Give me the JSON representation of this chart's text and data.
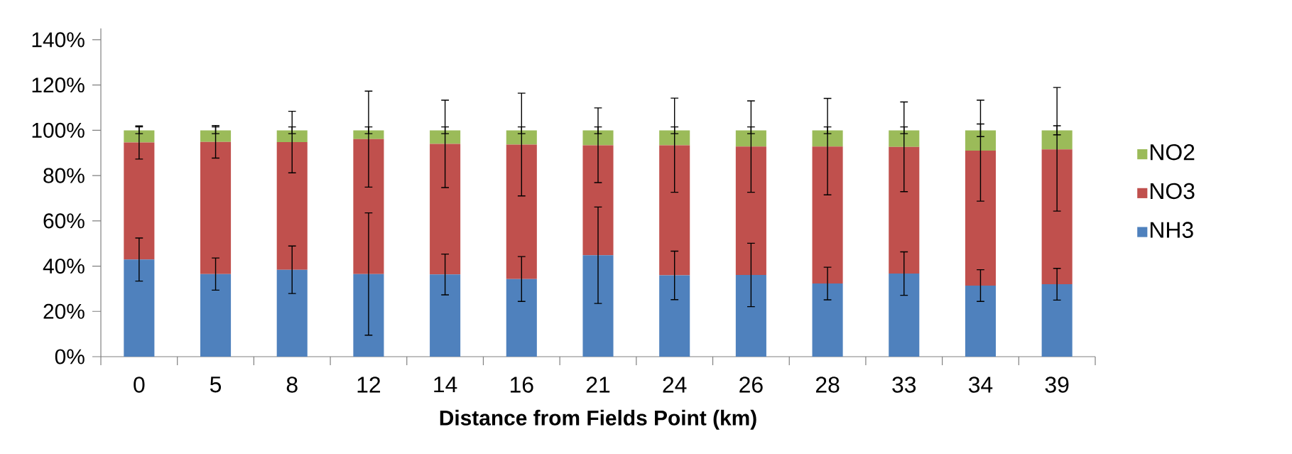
{
  "chart_data": {
    "type": "bar",
    "stacked": true,
    "xlabel": "Distance from Fields Point (km)",
    "categories": [
      "0",
      "5",
      "8",
      "12",
      "14",
      "16",
      "21",
      "24",
      "26",
      "28",
      "33",
      "34",
      "39"
    ],
    "series": [
      {
        "name": "NH3",
        "color": "#4f81bd",
        "values": [
          42.9,
          36.5,
          38.4,
          36.5,
          36.3,
          34.3,
          44.8,
          35.9,
          36.1,
          32.3,
          36.7,
          31.4,
          32.0
        ],
        "errors": [
          9.5,
          7.1,
          10.5,
          27,
          9,
          9.9,
          21.3,
          10.7,
          14,
          7.2,
          9.6,
          7,
          7
        ]
      },
      {
        "name": "NO3",
        "color": "#c0504d",
        "values": [
          51.7,
          58.4,
          56.4,
          59.6,
          57.7,
          59.4,
          48.6,
          57.5,
          56.7,
          60.5,
          56.0,
          59.6,
          59.6
        ],
        "errors": [
          7.3,
          7.2,
          13.6,
          21.2,
          19.3,
          22.7,
          16.5,
          20.8,
          20.2,
          21.3,
          19.8,
          22.3,
          27.3
        ]
      },
      {
        "name": "NO2",
        "color": "#9bbb59",
        "values": [
          5.4,
          5.1,
          5.2,
          3.9,
          6.0,
          6.3,
          6.6,
          6.6,
          7.2,
          7.2,
          7.3,
          9.0,
          8.4
        ],
        "errors": [
          1.5,
          1.5,
          1.5,
          1.5,
          1.5,
          1.5,
          1.5,
          1.5,
          1.5,
          1.5,
          1.5,
          2.8,
          2
        ]
      }
    ],
    "ylim": [
      0,
      145
    ],
    "yticks": [
      {
        "value": 0,
        "label": "0%"
      },
      {
        "value": 20,
        "label": "20%"
      },
      {
        "value": 40,
        "label": "40%"
      },
      {
        "value": 60,
        "label": "60%"
      },
      {
        "value": 80,
        "label": "80%"
      },
      {
        "value": 100,
        "label": "100%"
      },
      {
        "value": 120,
        "label": "120%"
      },
      {
        "value": 140,
        "label": "140%"
      }
    ],
    "legend": "right",
    "grid": false
  }
}
